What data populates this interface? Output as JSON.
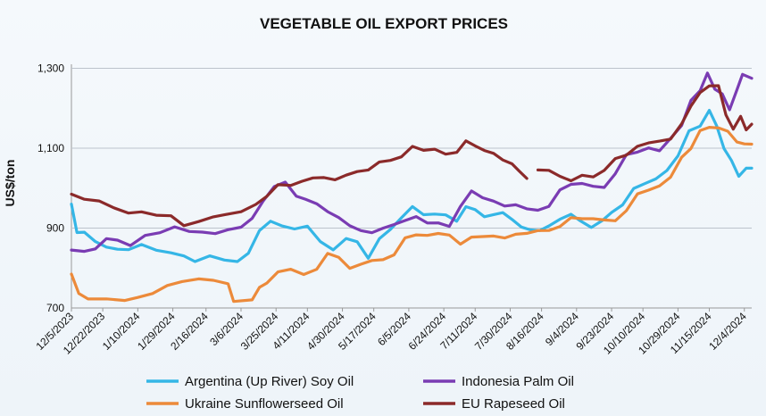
{
  "chart_data": {
    "type": "line",
    "title": "VEGETABLE OIL EXPORT PRICES",
    "xlabel": "",
    "ylabel": "US$/ton",
    "ylim": [
      700,
      1310
    ],
    "yticks": [
      700,
      900,
      1100,
      1300
    ],
    "ytick_labels": [
      "700",
      "900",
      "1,100",
      "1,300"
    ],
    "xticks": [
      "12/5/2023",
      "12/22/2023",
      "1/10/2024",
      "1/29/2024",
      "2/16/2024",
      "3/6/2024",
      "3/25/2024",
      "4/11/2024",
      "4/30/2024",
      "5/17/2024",
      "6/5/2024",
      "6/24/2024",
      "7/11/2024",
      "7/30/2024",
      "8/16/2024",
      "9/4/2024",
      "9/23/2024",
      "10/10/2024",
      "10/29/2024",
      "11/15/2024",
      "12/4/2024"
    ],
    "grid": true,
    "legend_position": "bottom",
    "series": [
      {
        "name": "Argentina (Up River) Soy Oil",
        "color": "#35b6e6",
        "points": [
          [
            "2023-12-05",
            960
          ],
          [
            "2023-12-08",
            895
          ],
          [
            "2023-12-12",
            890
          ],
          [
            "2023-12-18",
            870
          ],
          [
            "2023-12-24",
            855
          ],
          [
            "2023-12-30",
            850
          ],
          [
            "2024-01-05",
            850
          ],
          [
            "2024-01-12",
            860
          ],
          [
            "2024-01-20",
            840
          ],
          [
            "2024-01-28",
            835
          ],
          [
            "2024-02-04",
            830
          ],
          [
            "2024-02-10",
            815
          ],
          [
            "2024-02-18",
            825
          ],
          [
            "2024-02-26",
            820
          ],
          [
            "2024-03-04",
            815
          ],
          [
            "2024-03-10",
            840
          ],
          [
            "2024-03-16",
            900
          ],
          [
            "2024-03-22",
            920
          ],
          [
            "2024-03-28",
            910
          ],
          [
            "2024-04-04",
            900
          ],
          [
            "2024-04-11",
            910
          ],
          [
            "2024-04-18",
            870
          ],
          [
            "2024-04-25",
            850
          ],
          [
            "2024-05-02",
            870
          ],
          [
            "2024-05-08",
            860
          ],
          [
            "2024-05-14",
            820
          ],
          [
            "2024-05-20",
            870
          ],
          [
            "2024-05-26",
            890
          ],
          [
            "2024-06-01",
            920
          ],
          [
            "2024-06-07",
            950
          ],
          [
            "2024-06-13",
            940
          ],
          [
            "2024-06-19",
            940
          ],
          [
            "2024-06-25",
            935
          ],
          [
            "2024-07-01",
            920
          ],
          [
            "2024-07-06",
            955
          ],
          [
            "2024-07-11",
            950
          ],
          [
            "2024-07-16",
            935
          ],
          [
            "2024-07-21",
            940
          ],
          [
            "2024-07-26",
            935
          ],
          [
            "2024-07-31",
            920
          ],
          [
            "2024-08-05",
            900
          ],
          [
            "2024-08-10",
            895
          ],
          [
            "2024-08-15",
            890
          ],
          [
            "2024-08-20",
            900
          ],
          [
            "2024-08-26",
            920
          ],
          [
            "2024-09-01",
            940
          ],
          [
            "2024-09-06",
            920
          ],
          [
            "2024-09-12",
            905
          ],
          [
            "2024-09-18",
            920
          ],
          [
            "2024-09-23",
            940
          ],
          [
            "2024-09-29",
            960
          ],
          [
            "2024-10-05",
            1000
          ],
          [
            "2024-10-11",
            1010
          ],
          [
            "2024-10-17",
            1020
          ],
          [
            "2024-10-23",
            1040
          ],
          [
            "2024-10-29",
            1080
          ],
          [
            "2024-11-04",
            1140
          ],
          [
            "2024-11-10",
            1150
          ],
          [
            "2024-11-15",
            1190
          ],
          [
            "2024-11-19",
            1150
          ],
          [
            "2024-11-23",
            1100
          ],
          [
            "2024-11-27",
            1070
          ],
          [
            "2024-12-01",
            1035
          ],
          [
            "2024-12-05",
            1050
          ],
          [
            "2024-12-08",
            1050
          ]
        ]
      },
      {
        "name": "Indonesia Palm Oil",
        "color": "#7a3cb3",
        "points": [
          [
            "2023-12-05",
            845
          ],
          [
            "2023-12-12",
            840
          ],
          [
            "2023-12-18",
            845
          ],
          [
            "2023-12-24",
            870
          ],
          [
            "2023-12-30",
            865
          ],
          [
            "2024-01-06",
            855
          ],
          [
            "2024-01-14",
            880
          ],
          [
            "2024-01-22",
            885
          ],
          [
            "2024-01-30",
            900
          ],
          [
            "2024-02-07",
            895
          ],
          [
            "2024-02-14",
            890
          ],
          [
            "2024-02-21",
            890
          ],
          [
            "2024-02-28",
            900
          ],
          [
            "2024-03-06",
            905
          ],
          [
            "2024-03-12",
            930
          ],
          [
            "2024-03-18",
            970
          ],
          [
            "2024-03-24",
            1000
          ],
          [
            "2024-03-30",
            1010
          ],
          [
            "2024-04-05",
            980
          ],
          [
            "2024-04-10",
            970
          ],
          [
            "2024-04-16",
            960
          ],
          [
            "2024-04-22",
            940
          ],
          [
            "2024-04-28",
            920
          ],
          [
            "2024-05-04",
            910
          ],
          [
            "2024-05-10",
            900
          ],
          [
            "2024-05-16",
            890
          ],
          [
            "2024-05-22",
            905
          ],
          [
            "2024-05-28",
            910
          ],
          [
            "2024-06-03",
            925
          ],
          [
            "2024-06-09",
            930
          ],
          [
            "2024-06-15",
            915
          ],
          [
            "2024-06-21",
            910
          ],
          [
            "2024-06-27",
            900
          ],
          [
            "2024-07-03",
            950
          ],
          [
            "2024-07-09",
            990
          ],
          [
            "2024-07-15",
            970
          ],
          [
            "2024-07-21",
            965
          ],
          [
            "2024-07-27",
            955
          ],
          [
            "2024-08-02",
            960
          ],
          [
            "2024-08-08",
            950
          ],
          [
            "2024-08-14",
            950
          ],
          [
            "2024-08-20",
            960
          ],
          [
            "2024-08-26",
            1000
          ],
          [
            "2024-09-01",
            1010
          ],
          [
            "2024-09-07",
            1015
          ],
          [
            "2024-09-13",
            1010
          ],
          [
            "2024-09-19",
            1000
          ],
          [
            "2024-09-25",
            1030
          ],
          [
            "2024-10-01",
            1080
          ],
          [
            "2024-10-07",
            1090
          ],
          [
            "2024-10-13",
            1100
          ],
          [
            "2024-10-19",
            1090
          ],
          [
            "2024-10-25",
            1120
          ],
          [
            "2024-10-31",
            1160
          ],
          [
            "2024-11-05",
            1220
          ],
          [
            "2024-11-10",
            1250
          ],
          [
            "2024-11-14",
            1290
          ],
          [
            "2024-11-18",
            1250
          ],
          [
            "2024-11-22",
            1240
          ],
          [
            "2024-11-26",
            1200
          ],
          [
            "2024-11-30",
            1250
          ],
          [
            "2024-12-03",
            1280
          ],
          [
            "2024-12-08",
            1275
          ]
        ]
      },
      {
        "name": "Ukraine Sunflowerseed Oil",
        "color": "#ec8a3a",
        "points": [
          [
            "2023-12-05",
            785
          ],
          [
            "2023-12-09",
            730
          ],
          [
            "2023-12-14",
            725
          ],
          [
            "2023-12-24",
            725
          ],
          [
            "2024-01-03",
            725
          ],
          [
            "2024-01-10",
            730
          ],
          [
            "2024-01-18",
            740
          ],
          [
            "2024-01-26",
            760
          ],
          [
            "2024-02-03",
            770
          ],
          [
            "2024-02-12",
            770
          ],
          [
            "2024-02-20",
            765
          ],
          [
            "2024-02-28",
            760
          ],
          [
            "2024-03-02",
            715
          ],
          [
            "2024-03-12",
            715
          ],
          [
            "2024-03-16",
            750
          ],
          [
            "2024-03-20",
            760
          ],
          [
            "2024-03-26",
            790
          ],
          [
            "2024-04-02",
            800
          ],
          [
            "2024-04-09",
            790
          ],
          [
            "2024-04-16",
            800
          ],
          [
            "2024-04-22",
            840
          ],
          [
            "2024-04-28",
            830
          ],
          [
            "2024-05-04",
            800
          ],
          [
            "2024-05-10",
            810
          ],
          [
            "2024-05-16",
            815
          ],
          [
            "2024-05-22",
            820
          ],
          [
            "2024-05-28",
            830
          ],
          [
            "2024-06-03",
            870
          ],
          [
            "2024-06-09",
            880
          ],
          [
            "2024-06-15",
            880
          ],
          [
            "2024-06-21",
            880
          ],
          [
            "2024-06-27",
            880
          ],
          [
            "2024-07-03",
            860
          ],
          [
            "2024-07-09",
            880
          ],
          [
            "2024-07-15",
            880
          ],
          [
            "2024-07-21",
            885
          ],
          [
            "2024-07-27",
            880
          ],
          [
            "2024-08-02",
            890
          ],
          [
            "2024-08-08",
            890
          ],
          [
            "2024-08-14",
            890
          ],
          [
            "2024-08-20",
            890
          ],
          [
            "2024-08-26",
            900
          ],
          [
            "2024-09-01",
            920
          ],
          [
            "2024-09-07",
            920
          ],
          [
            "2024-09-13",
            920
          ],
          [
            "2024-09-19",
            920
          ],
          [
            "2024-09-25",
            920
          ],
          [
            "2024-10-01",
            950
          ],
          [
            "2024-10-07",
            990
          ],
          [
            "2024-10-13",
            1000
          ],
          [
            "2024-10-19",
            1010
          ],
          [
            "2024-10-25",
            1030
          ],
          [
            "2024-10-31",
            1080
          ],
          [
            "2024-11-05",
            1100
          ],
          [
            "2024-11-10",
            1140
          ],
          [
            "2024-11-15",
            1150
          ],
          [
            "2024-11-20",
            1150
          ],
          [
            "2024-11-25",
            1140
          ],
          [
            "2024-11-30",
            1110
          ],
          [
            "2024-12-04",
            1110
          ],
          [
            "2024-12-08",
            1110
          ]
        ]
      },
      {
        "name": "EU Rapeseed Oil",
        "color": "#8b2a2a",
        "points": [
          [
            "2023-12-05",
            985
          ],
          [
            "2023-12-12",
            975
          ],
          [
            "2023-12-20",
            970
          ],
          [
            "2023-12-28",
            950
          ],
          [
            "2024-01-05",
            935
          ],
          [
            "2024-01-12",
            940
          ],
          [
            "2024-01-20",
            930
          ],
          [
            "2024-01-28",
            925
          ],
          [
            "2024-02-04",
            905
          ],
          [
            "2024-02-12",
            910
          ],
          [
            "2024-02-20",
            930
          ],
          [
            "2024-02-28",
            940
          ],
          [
            "2024-03-06",
            945
          ],
          [
            "2024-03-14",
            960
          ],
          [
            "2024-03-20",
            980
          ],
          [
            "2024-03-26",
            1010
          ],
          [
            "2024-04-02",
            1010
          ],
          [
            "2024-04-08",
            1020
          ],
          [
            "2024-04-14",
            1020
          ],
          [
            "2024-04-20",
            1020
          ],
          [
            "2024-04-26",
            1015
          ],
          [
            "2024-05-02",
            1030
          ],
          [
            "2024-05-08",
            1040
          ],
          [
            "2024-05-14",
            1040
          ],
          [
            "2024-05-20",
            1060
          ],
          [
            "2024-05-26",
            1070
          ],
          [
            "2024-06-01",
            1085
          ],
          [
            "2024-06-07",
            1105
          ],
          [
            "2024-06-13",
            1100
          ],
          [
            "2024-06-19",
            1100
          ],
          [
            "2024-06-25",
            1090
          ],
          [
            "2024-07-01",
            1095
          ],
          [
            "2024-07-06",
            1115
          ],
          [
            "2024-07-11",
            1100
          ],
          [
            "2024-07-16",
            1090
          ],
          [
            "2024-07-21",
            1085
          ],
          [
            "2024-07-26",
            1070
          ],
          [
            "2024-07-31",
            1055
          ],
          [
            "2024-08-04",
            1040
          ],
          [
            "2024-08-08",
            1020
          ],
          [
            null,
            null
          ],
          [
            "2024-08-14",
            1050
          ],
          [
            "2024-08-20",
            1045
          ],
          [
            "2024-08-26",
            1030
          ],
          [
            "2024-09-01",
            1020
          ],
          [
            "2024-09-07",
            1035
          ],
          [
            "2024-09-13",
            1030
          ],
          [
            "2024-09-19",
            1040
          ],
          [
            "2024-09-25",
            1070
          ],
          [
            "2024-10-01",
            1080
          ],
          [
            "2024-10-07",
            1100
          ],
          [
            "2024-10-13",
            1110
          ],
          [
            "2024-10-19",
            1115
          ],
          [
            "2024-10-25",
            1120
          ],
          [
            "2024-10-31",
            1160
          ],
          [
            "2024-11-05",
            1210
          ],
          [
            "2024-11-10",
            1240
          ],
          [
            "2024-11-15",
            1260
          ],
          [
            "2024-11-20",
            1260
          ],
          [
            "2024-11-24",
            1190
          ],
          [
            "2024-11-28",
            1150
          ],
          [
            "2024-12-02",
            1180
          ],
          [
            "2024-12-05",
            1145
          ],
          [
            "2024-12-08",
            1160
          ]
        ]
      }
    ]
  }
}
